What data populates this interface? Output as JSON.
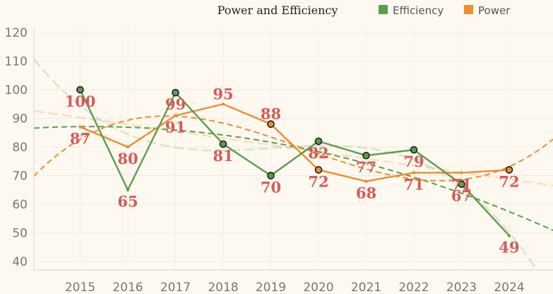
{
  "chart_data": {
    "type": "line",
    "title": "Power and Efficiency",
    "x": [
      "2015",
      "2016",
      "2017",
      "2018",
      "2019",
      "2020",
      "2021",
      "2022",
      "2023",
      "2024"
    ],
    "series": [
      {
        "name": "Efficiency",
        "color": "#5a9e4b",
        "values": [
          100,
          65,
          99,
          81,
          70,
          82,
          77,
          79,
          67,
          49
        ],
        "markers": [
          true,
          false,
          true,
          true,
          true,
          true,
          true,
          true,
          true,
          false
        ]
      },
      {
        "name": "Power",
        "color": "#ef8c2f",
        "values": [
          87,
          80,
          91,
          95,
          88,
          72,
          68,
          71,
          71,
          72
        ],
        "markers": [
          false,
          false,
          false,
          false,
          true,
          true,
          false,
          false,
          false,
          true
        ]
      }
    ],
    "yticks": [
      40,
      50,
      60,
      70,
      80,
      90,
      100,
      110,
      120
    ],
    "ylim": [
      37,
      122
    ],
    "legend": "top-right",
    "grid": true
  }
}
